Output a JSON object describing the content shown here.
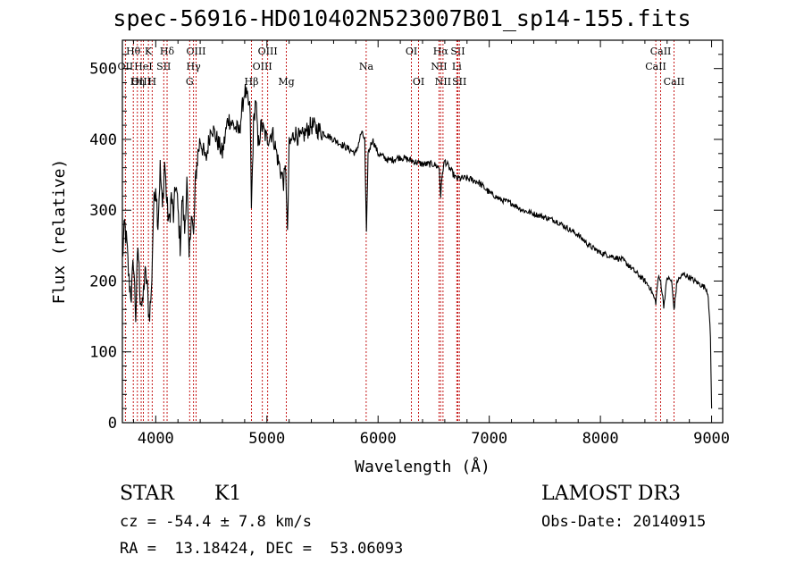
{
  "chart_data": {
    "type": "line",
    "title": "spec-56916-HD010402N523007B01_sp14-155.fits",
    "xlabel": "Wavelength (Å)",
    "ylabel": "Flux (relative)",
    "xlim": [
      3700,
      9100
    ],
    "ylim": [
      0,
      540
    ],
    "xticks": [
      4000,
      5000,
      6000,
      7000,
      8000,
      9000
    ],
    "yticks": [
      0,
      100,
      200,
      300,
      400,
      500
    ],
    "series": [
      {
        "name": "flux",
        "x": [
          3700,
          3720,
          3740,
          3760,
          3780,
          3800,
          3820,
          3840,
          3860,
          3880,
          3900,
          3920,
          3940,
          3960,
          3980,
          4000,
          4020,
          4040,
          4060,
          4080,
          4100,
          4120,
          4140,
          4160,
          4180,
          4200,
          4220,
          4240,
          4260,
          4280,
          4300,
          4320,
          4340,
          4360,
          4380,
          4400,
          4450,
          4500,
          4550,
          4600,
          4650,
          4700,
          4750,
          4800,
          4850,
          4860,
          4880,
          4900,
          4920,
          4950,
          5000,
          5050,
          5100,
          5150,
          5170,
          5185,
          5200,
          5250,
          5300,
          5400,
          5500,
          5600,
          5700,
          5800,
          5850,
          5880,
          5895,
          5910,
          5950,
          6000,
          6100,
          6200,
          6300,
          6400,
          6500,
          6550,
          6563,
          6580,
          6600,
          6700,
          6800,
          6900,
          7000,
          7100,
          7200,
          7300,
          7400,
          7500,
          7600,
          7700,
          7800,
          7900,
          8000,
          8100,
          8200,
          8300,
          8400,
          8450,
          8498,
          8520,
          8542,
          8570,
          8600,
          8640,
          8662,
          8690,
          8750,
          8800,
          8850,
          8900,
          8950,
          8970,
          8990,
          9000
        ],
        "y": [
          230,
          280,
          250,
          200,
          180,
          230,
          150,
          250,
          180,
          160,
          210,
          200,
          150,
          180,
          300,
          340,
          280,
          360,
          300,
          370,
          310,
          280,
          320,
          290,
          340,
          300,
          250,
          320,
          270,
          340,
          230,
          300,
          260,
          350,
          380,
          400,
          370,
          420,
          400,
          380,
          430,
          420,
          410,
          470,
          440,
          300,
          420,
          460,
          390,
          420,
          400,
          410,
          370,
          340,
          360,
          260,
          390,
          410,
          400,
          420,
          410,
          400,
          390,
          380,
          410,
          400,
          265,
          380,
          400,
          380,
          370,
          375,
          370,
          365,
          365,
          360,
          320,
          355,
          370,
          345,
          345,
          340,
          325,
          315,
          310,
          300,
          295,
          290,
          285,
          275,
          265,
          250,
          240,
          235,
          230,
          215,
          200,
          190,
          170,
          205,
          200,
          165,
          205,
          200,
          160,
          200,
          210,
          205,
          200,
          195,
          190,
          180,
          120,
          20
        ]
      }
    ],
    "lines": [
      {
        "name": "Hθ",
        "wl": 3798,
        "row": 0
      },
      {
        "name": "OII",
        "wl": 3727,
        "row": 1
      },
      {
        "name": "OIII",
        "wl": 3869,
        "row": 2
      },
      {
        "name": "HeI",
        "wl": 3889,
        "row": 1
      },
      {
        "name": "K",
        "wl": 3934,
        "row": 0
      },
      {
        "name": "Hη",
        "wl": 3835,
        "row": 2
      },
      {
        "name": "H",
        "wl": 3968,
        "row": 2
      },
      {
        "name": "SII",
        "wl": 4072,
        "row": 1
      },
      {
        "name": "Hδ",
        "wl": 4102,
        "row": 0
      },
      {
        "name": "OIII",
        "wl": 4363,
        "row": 0
      },
      {
        "name": "Hγ",
        "wl": 4340,
        "row": 1
      },
      {
        "name": "G",
        "wl": 4305,
        "row": 2
      },
      {
        "name": "Hβ",
        "wl": 4861,
        "row": 2
      },
      {
        "name": "OIII",
        "wl": 4959,
        "row": 1
      },
      {
        "name": "OIII",
        "wl": 5007,
        "row": 0
      },
      {
        "name": "Mg",
        "wl": 5175,
        "row": 2
      },
      {
        "name": "Na",
        "wl": 5893,
        "row": 1
      },
      {
        "name": "OI",
        "wl": 6300,
        "row": 0
      },
      {
        "name": "OI",
        "wl": 6364,
        "row": 2
      },
      {
        "name": "Hα",
        "wl": 6563,
        "row": 0
      },
      {
        "name": "NII",
        "wl": 6548,
        "row": 1
      },
      {
        "name": "NII",
        "wl": 6584,
        "row": 2
      },
      {
        "name": "SII",
        "wl": 6717,
        "row": 0
      },
      {
        "name": "Li",
        "wl": 6708,
        "row": 1
      },
      {
        "name": "SII",
        "wl": 6731,
        "row": 2
      },
      {
        "name": "CaII",
        "wl": 8542,
        "row": 0
      },
      {
        "name": "CaII",
        "wl": 8498,
        "row": 1
      },
      {
        "name": "CaII",
        "wl": 8662,
        "row": 2
      }
    ]
  },
  "info": {
    "obj_class": "STAR",
    "subclass": "K1",
    "survey": "LAMOST DR3",
    "cz": "cz = -54.4 ± 7.8 km/s",
    "obs_date": "Obs-Date: 20140915",
    "coords": "RA =  13.18424, DEC =  53.06093"
  }
}
